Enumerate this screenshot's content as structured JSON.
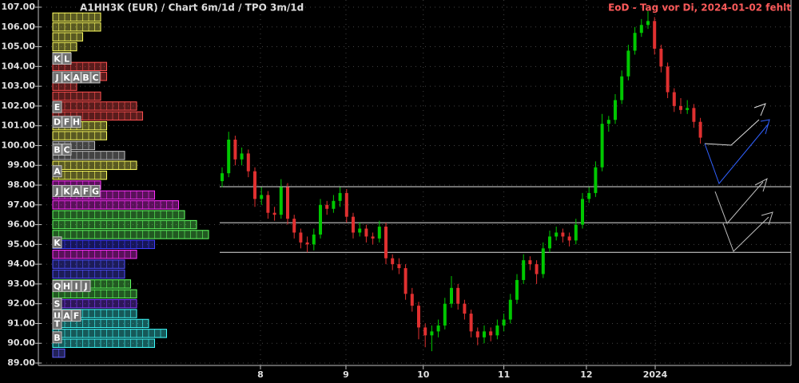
{
  "chart_data": {
    "type": "candlestick",
    "title": "A1HH3K (EUR) /  Chart 6m/1d / TPO 3m/1d",
    "subtitle": "EoD - Tag vor Di, 2024-01-02 fehlt",
    "up_color": "#00c800",
    "down_color": "#e03030",
    "ylim": [
      89,
      107
    ],
    "yticks": [
      {
        "value": 89,
        "label": "89.00"
      },
      {
        "value": 90,
        "label": "90.00"
      },
      {
        "value": 91,
        "label": "91.00"
      },
      {
        "value": 92,
        "label": "92.00"
      },
      {
        "value": 93,
        "label": "93.00"
      },
      {
        "value": 94,
        "label": "94.00"
      },
      {
        "value": 95,
        "label": "95.00"
      },
      {
        "value": 96,
        "label": "96.00"
      },
      {
        "value": 97,
        "label": "97.00"
      },
      {
        "value": 98,
        "label": "98.00"
      },
      {
        "value": 99,
        "label": "99.00"
      },
      {
        "value": 100,
        "label": "100.00"
      },
      {
        "value": 101,
        "label": "101.00"
      },
      {
        "value": 102,
        "label": "102.00"
      },
      {
        "value": 103,
        "label": "103.00"
      },
      {
        "value": 104,
        "label": "104.00"
      },
      {
        "value": 105,
        "label": "105.00"
      },
      {
        "value": 106,
        "label": "106.00"
      },
      {
        "value": 107,
        "label": "107.00"
      }
    ],
    "xticks": [
      {
        "value": 5.85,
        "label": "8"
      },
      {
        "value": 18.9,
        "label": "9"
      },
      {
        "value": 30.7,
        "label": "10"
      },
      {
        "value": 43.0,
        "label": "11"
      },
      {
        "value": 55.6,
        "label": "12"
      },
      {
        "value": 66.1,
        "label": "2024"
      }
    ],
    "grid": true,
    "ohlc": [
      [
        98.2,
        98.9,
        97.9,
        98.6
      ],
      [
        98.6,
        100.7,
        98.4,
        100.3
      ],
      [
        100.3,
        100.5,
        99.0,
        99.3
      ],
      [
        99.3,
        99.9,
        99.0,
        99.6
      ],
      [
        99.6,
        99.8,
        98.4,
        98.7
      ],
      [
        98.7,
        98.9,
        96.9,
        97.3
      ],
      [
        97.3,
        97.9,
        97.0,
        97.5
      ],
      [
        97.5,
        97.7,
        96.3,
        96.6
      ],
      [
        96.6,
        96.9,
        96.2,
        96.5
      ],
      [
        96.5,
        98.3,
        96.3,
        97.9
      ],
      [
        97.9,
        98.1,
        96.0,
        96.3
      ],
      [
        96.3,
        96.5,
        95.3,
        95.6
      ],
      [
        95.6,
        95.8,
        94.8,
        95.1
      ],
      [
        95.1,
        95.4,
        94.6,
        95.0
      ],
      [
        95.0,
        95.8,
        94.7,
        95.5
      ],
      [
        95.5,
        97.3,
        95.3,
        97.0
      ],
      [
        97.0,
        97.2,
        96.5,
        96.8
      ],
      [
        96.8,
        97.5,
        96.6,
        97.2
      ],
      [
        97.2,
        97.9,
        96.9,
        97.6
      ],
      [
        97.6,
        97.8,
        96.1,
        96.4
      ],
      [
        96.4,
        96.6,
        95.3,
        95.6
      ],
      [
        95.6,
        96.1,
        95.4,
        95.8
      ],
      [
        95.8,
        96.0,
        95.1,
        95.4
      ],
      [
        95.4,
        95.6,
        95.0,
        95.3
      ],
      [
        95.3,
        96.2,
        95.1,
        95.9
      ],
      [
        95.9,
        96.1,
        94.0,
        94.3
      ],
      [
        94.3,
        94.5,
        93.7,
        94.0
      ],
      [
        94.0,
        94.3,
        93.5,
        93.8
      ],
      [
        93.8,
        94.0,
        92.2,
        92.5
      ],
      [
        92.5,
        92.8,
        91.6,
        91.9
      ],
      [
        91.9,
        92.1,
        90.2,
        90.8
      ],
      [
        90.8,
        91.0,
        89.8,
        90.4
      ],
      [
        90.4,
        90.9,
        89.6,
        90.6
      ],
      [
        90.6,
        91.2,
        90.3,
        90.9
      ],
      [
        90.9,
        92.3,
        90.7,
        92.0
      ],
      [
        92.0,
        93.4,
        91.8,
        92.8
      ],
      [
        92.8,
        93.0,
        91.7,
        92.0
      ],
      [
        92.0,
        92.2,
        91.2,
        91.5
      ],
      [
        91.5,
        91.7,
        90.3,
        90.6
      ],
      [
        90.6,
        90.8,
        89.9,
        90.3
      ],
      [
        90.3,
        90.9,
        90.0,
        90.6
      ],
      [
        90.6,
        90.8,
        90.1,
        90.4
      ],
      [
        90.4,
        91.2,
        90.2,
        90.9
      ],
      [
        90.9,
        91.5,
        90.6,
        91.2
      ],
      [
        91.2,
        92.5,
        91.0,
        92.2
      ],
      [
        92.2,
        93.5,
        92.0,
        93.2
      ],
      [
        93.2,
        94.5,
        93.0,
        94.2
      ],
      [
        94.2,
        94.4,
        93.7,
        94.0
      ],
      [
        94.0,
        94.2,
        93.0,
        93.5
      ],
      [
        93.5,
        95.1,
        93.3,
        94.8
      ],
      [
        94.8,
        95.7,
        94.6,
        95.4
      ],
      [
        95.4,
        95.9,
        95.2,
        95.6
      ],
      [
        95.6,
        95.8,
        95.1,
        95.4
      ],
      [
        95.4,
        95.6,
        94.9,
        95.2
      ],
      [
        95.2,
        96.3,
        95.0,
        96.0
      ],
      [
        96.0,
        97.6,
        95.8,
        97.3
      ],
      [
        97.3,
        97.9,
        97.1,
        97.6
      ],
      [
        97.6,
        99.2,
        97.4,
        98.9
      ],
      [
        98.9,
        101.6,
        98.7,
        101.1
      ],
      [
        101.1,
        101.5,
        100.7,
        101.3
      ],
      [
        101.3,
        102.6,
        101.1,
        102.3
      ],
      [
        102.3,
        103.8,
        102.1,
        103.5
      ],
      [
        103.5,
        105.1,
        103.3,
        104.8
      ],
      [
        104.8,
        106.0,
        104.6,
        105.7
      ],
      [
        105.7,
        106.4,
        105.5,
        106.1
      ],
      [
        106.1,
        106.8,
        105.9,
        106.3
      ],
      [
        106.3,
        106.5,
        104.6,
        104.9
      ],
      [
        104.9,
        105.1,
        103.7,
        104.0
      ],
      [
        104.0,
        104.2,
        102.4,
        102.7
      ],
      [
        102.7,
        102.9,
        101.7,
        102.0
      ],
      [
        102.0,
        102.4,
        101.6,
        101.8
      ],
      [
        101.8,
        102.3,
        101.6,
        101.9
      ],
      [
        101.9,
        102.1,
        100.9,
        101.2
      ],
      [
        101.2,
        101.4,
        100.1,
        100.4
      ]
    ],
    "levels": [
      97.92,
      96.1,
      94.6
    ],
    "profile": {
      "prices": [
        106.5,
        106,
        105.5,
        105,
        104.5,
        104,
        103.5,
        103,
        102.5,
        102,
        101.5,
        101,
        100.5,
        100,
        99.5,
        99,
        98.5,
        98,
        97.5,
        97,
        96.5,
        96,
        95.5,
        95,
        94.5,
        94,
        93.5,
        93,
        92.5,
        92,
        91.5,
        91,
        90.5,
        90,
        89.5
      ],
      "counts": [
        8,
        8,
        5,
        4,
        3,
        9,
        9,
        4,
        8,
        14,
        15,
        9,
        9,
        7,
        12,
        14,
        9,
        8,
        17,
        21,
        22,
        24,
        26,
        17,
        14,
        12,
        12,
        13,
        14,
        14,
        14,
        16,
        19,
        17,
        2
      ],
      "colors": [
        "#ffff60",
        "#ffff60",
        "#ffff60",
        "#ffff60",
        "#ffff60",
        "#ff5050",
        "#ff5050",
        "#ff5050",
        "#ff5050",
        "#ff5050",
        "#ff5050",
        "#ffff60",
        "#ffff60",
        "#c0c0c0",
        "#c0c0c0",
        "#ffff60",
        "#ffff60",
        "#ff30ff",
        "#ff30ff",
        "#ff30ff",
        "#60ff60",
        "#60ff60",
        "#60ff60",
        "#4040ff",
        "#ff30ff",
        "#5050ff",
        "#5050ff",
        "#60ff60",
        "#60ff60",
        "#8040ff",
        "#40ffff",
        "#40ffff",
        "#40ffff",
        "#40ffff",
        "#6060ff"
      ]
    },
    "tpo_labels": [
      {
        "price": 104.4,
        "letters": [
          "K",
          "L"
        ]
      },
      {
        "price": 103.45,
        "letters": [
          "J",
          "K",
          "A",
          "B",
          "C"
        ]
      },
      {
        "price": 101.95,
        "letters": [
          "E"
        ]
      },
      {
        "price": 101.2,
        "letters": [
          "D",
          "F",
          "H"
        ]
      },
      {
        "price": 99.8,
        "letters": [
          "B",
          "C"
        ]
      },
      {
        "price": 98.7,
        "letters": [
          "A"
        ]
      },
      {
        "price": 97.7,
        "letters": [
          "J",
          "K",
          "A",
          "F",
          "G"
        ]
      },
      {
        "price": 95.1,
        "letters": [
          "K"
        ]
      },
      {
        "price": 92.9,
        "letters": [
          "Q",
          "H",
          "I",
          "J"
        ]
      },
      {
        "price": 92.0,
        "letters": [
          "S"
        ]
      },
      {
        "price": 91.4,
        "letters": [
          "U",
          "A",
          "F"
        ]
      },
      {
        "price": 91.0,
        "letters": [
          "T"
        ]
      },
      {
        "price": 90.3,
        "letters": [
          "B"
        ]
      }
    ]
  }
}
